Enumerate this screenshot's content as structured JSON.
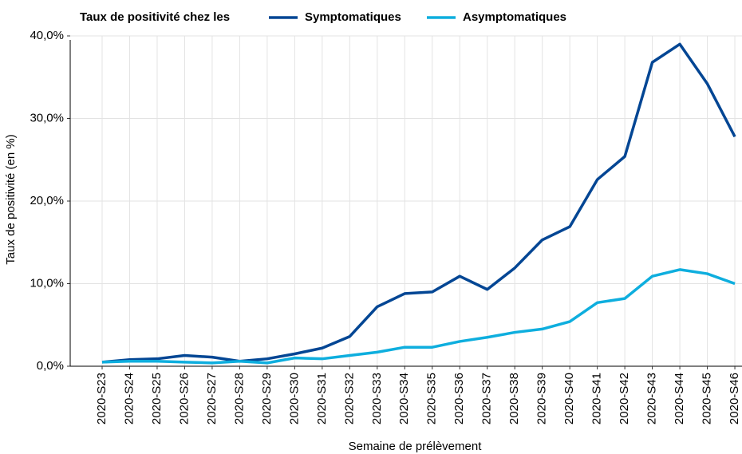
{
  "chart_data": {
    "type": "line",
    "legend_title": "Taux de positivité chez les",
    "xlabel": "Semaine de prélèvement",
    "ylabel": "Taux de positivité (en %)",
    "categories": [
      "2020-S23",
      "2020-S24",
      "2020-S25",
      "2020-S26",
      "2020-S27",
      "2020-S28",
      "2020-S29",
      "2020-S30",
      "2020-S31",
      "2020-S32",
      "2020-S33",
      "2020-S34",
      "2020-S35",
      "2020-S36",
      "2020-S37",
      "2020-S38",
      "2020-S39",
      "2020-S40",
      "2020-S41",
      "2020-S42",
      "2020-S43",
      "2020-S44",
      "2020-S45",
      "2020-S46"
    ],
    "series": [
      {
        "name": "Symptomatiques",
        "color": "#034694",
        "values": [
          0.5,
          0.8,
          0.9,
          1.3,
          1.1,
          0.6,
          0.9,
          1.5,
          2.2,
          3.6,
          7.2,
          8.8,
          9.0,
          10.9,
          9.3,
          11.9,
          15.3,
          16.9,
          22.6,
          25.4,
          36.8,
          39.0,
          34.2,
          27.8
        ]
      },
      {
        "name": "Asymptomatiques",
        "color": "#0eaede",
        "values": [
          0.5,
          0.6,
          0.6,
          0.5,
          0.4,
          0.6,
          0.4,
          1.0,
          0.9,
          1.3,
          1.7,
          2.3,
          2.3,
          3.0,
          3.5,
          4.1,
          4.5,
          5.4,
          7.7,
          8.2,
          10.9,
          11.7,
          11.2,
          10.0
        ]
      }
    ],
    "ylim": [
      0,
      40
    ],
    "yticks": [
      {
        "value": 0,
        "label": "0,0%"
      },
      {
        "value": 10,
        "label": "10,0%"
      },
      {
        "value": 20,
        "label": "20,0%"
      },
      {
        "value": 30,
        "label": "30,0%"
      },
      {
        "value": 40,
        "label": "40,0%"
      }
    ],
    "grid": true,
    "legend": "top"
  }
}
